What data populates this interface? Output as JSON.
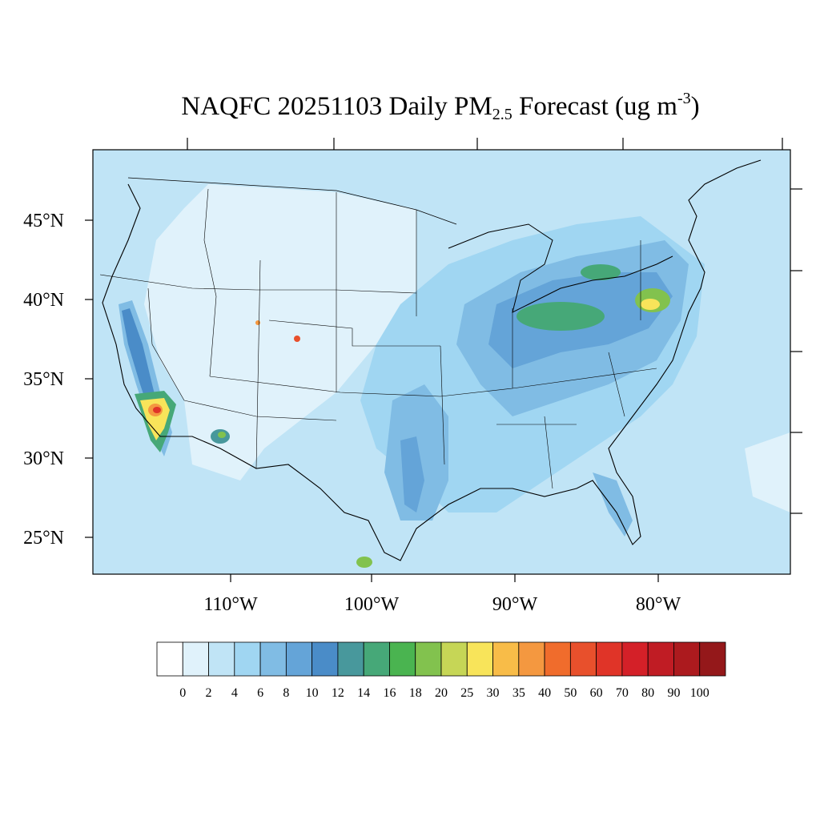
{
  "title": {
    "prefix": "NAQFC 20251103 Daily PM",
    "subscript": "2.5",
    "middle": " Forecast (ug m",
    "superscript": "-3",
    "suffix": ")"
  },
  "map": {
    "lat_labels": [
      "45°N",
      "40°N",
      "35°N",
      "30°N",
      "25°N"
    ],
    "lon_labels": [
      "110°W",
      "100°W",
      "90°W",
      "80°W"
    ],
    "background_color": "#c0e4f6"
  },
  "colorbar": {
    "colors": [
      "#ffffff",
      "#e0f2fb",
      "#c0e4f6",
      "#a0d6f2",
      "#80bce4",
      "#64a4d8",
      "#4a8cc8",
      "#48989c",
      "#46a878",
      "#4ab450",
      "#82c24e",
      "#c6d656",
      "#f8e45a",
      "#f8bc48",
      "#f49840",
      "#f06c2c",
      "#e8502c",
      "#e03428",
      "#d42028",
      "#c01c24",
      "#ac1a1e",
      "#94181a"
    ],
    "labels": [
      "0",
      "2",
      "4",
      "6",
      "8",
      "10",
      "12",
      "14",
      "16",
      "18",
      "20",
      "25",
      "30",
      "35",
      "40",
      "50",
      "60",
      "70",
      "80",
      "90",
      "100"
    ]
  }
}
